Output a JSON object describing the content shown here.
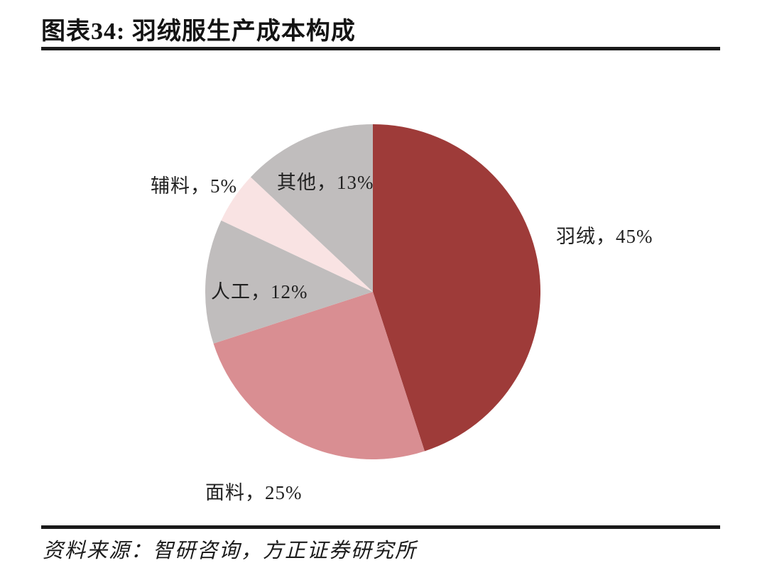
{
  "header": {
    "title": "图表34: 羽绒服生产成本构成"
  },
  "footer": {
    "source": "资料来源：智研咨询，方正证券研究所"
  },
  "chart_data": {
    "type": "pie",
    "title": "羽绒服生产成本构成",
    "start_angle_deg": 0,
    "direction": "clockwise",
    "legend": "none",
    "labels_position": "outside",
    "background": "#ffffff",
    "slices": [
      {
        "label": "羽绒",
        "value_pct": 45,
        "color": "#9E3B39",
        "display": "羽绒，45%"
      },
      {
        "label": "面料",
        "value_pct": 25,
        "color": "#D98E92",
        "display": "面料，25%"
      },
      {
        "label": "人工",
        "value_pct": 12,
        "color": "#C0BDBD",
        "display": "人工，12%"
      },
      {
        "label": "辅料",
        "value_pct": 5,
        "color": "#F9E3E3",
        "display": "辅料，5%"
      },
      {
        "label": "其他",
        "value_pct": 13,
        "color": "#C0BDBD",
        "display": "其他，13%"
      }
    ]
  }
}
